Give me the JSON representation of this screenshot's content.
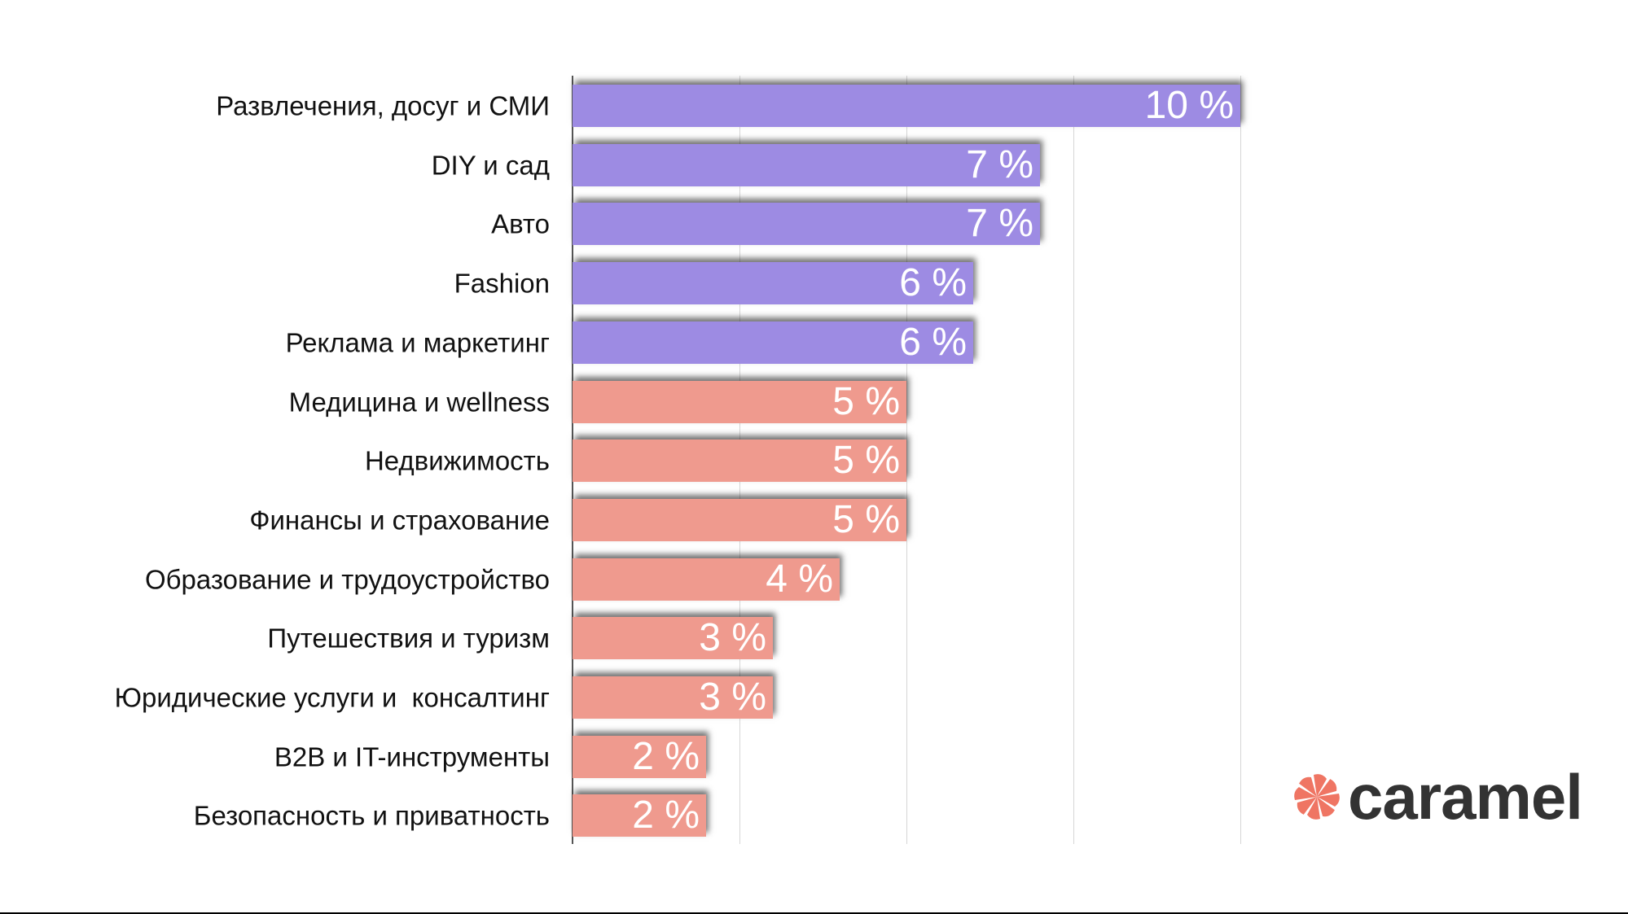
{
  "chart_data": {
    "type": "bar",
    "orientation": "horizontal",
    "categories": [
      "Развлечения, досуг и СМИ",
      "DIY и сад",
      "Авто",
      "Fashion",
      "Реклама и маркетинг",
      "Медицина и wellness",
      "Недвижимость",
      "Финансы и страхование",
      "Образование и трудоустройство",
      "Путешествия и туризм",
      "Юридические услуги и  консалтинг",
      "B2B и IT-инструменты",
      "Безопасность и приватность"
    ],
    "values": [
      10,
      7,
      7,
      6,
      6,
      5,
      5,
      5,
      4,
      3,
      3,
      2,
      2
    ],
    "data_labels": [
      "10 %",
      "7 %",
      "7 %",
      "6 %",
      "6 %",
      "5 %",
      "5 %",
      "5 %",
      "4 %",
      "3 %",
      "3 %",
      "2 %",
      "2 %"
    ],
    "xlim": [
      0,
      10
    ],
    "grid": true,
    "grid_step": 2.5,
    "colors": {
      "top5": "#9d8be3",
      "rest": "#ef9a8e"
    },
    "title": "",
    "xlabel": "",
    "ylabel": ""
  },
  "logo": {
    "text": "caramel",
    "color": "#333333",
    "mark_color": "#ef7563"
  }
}
